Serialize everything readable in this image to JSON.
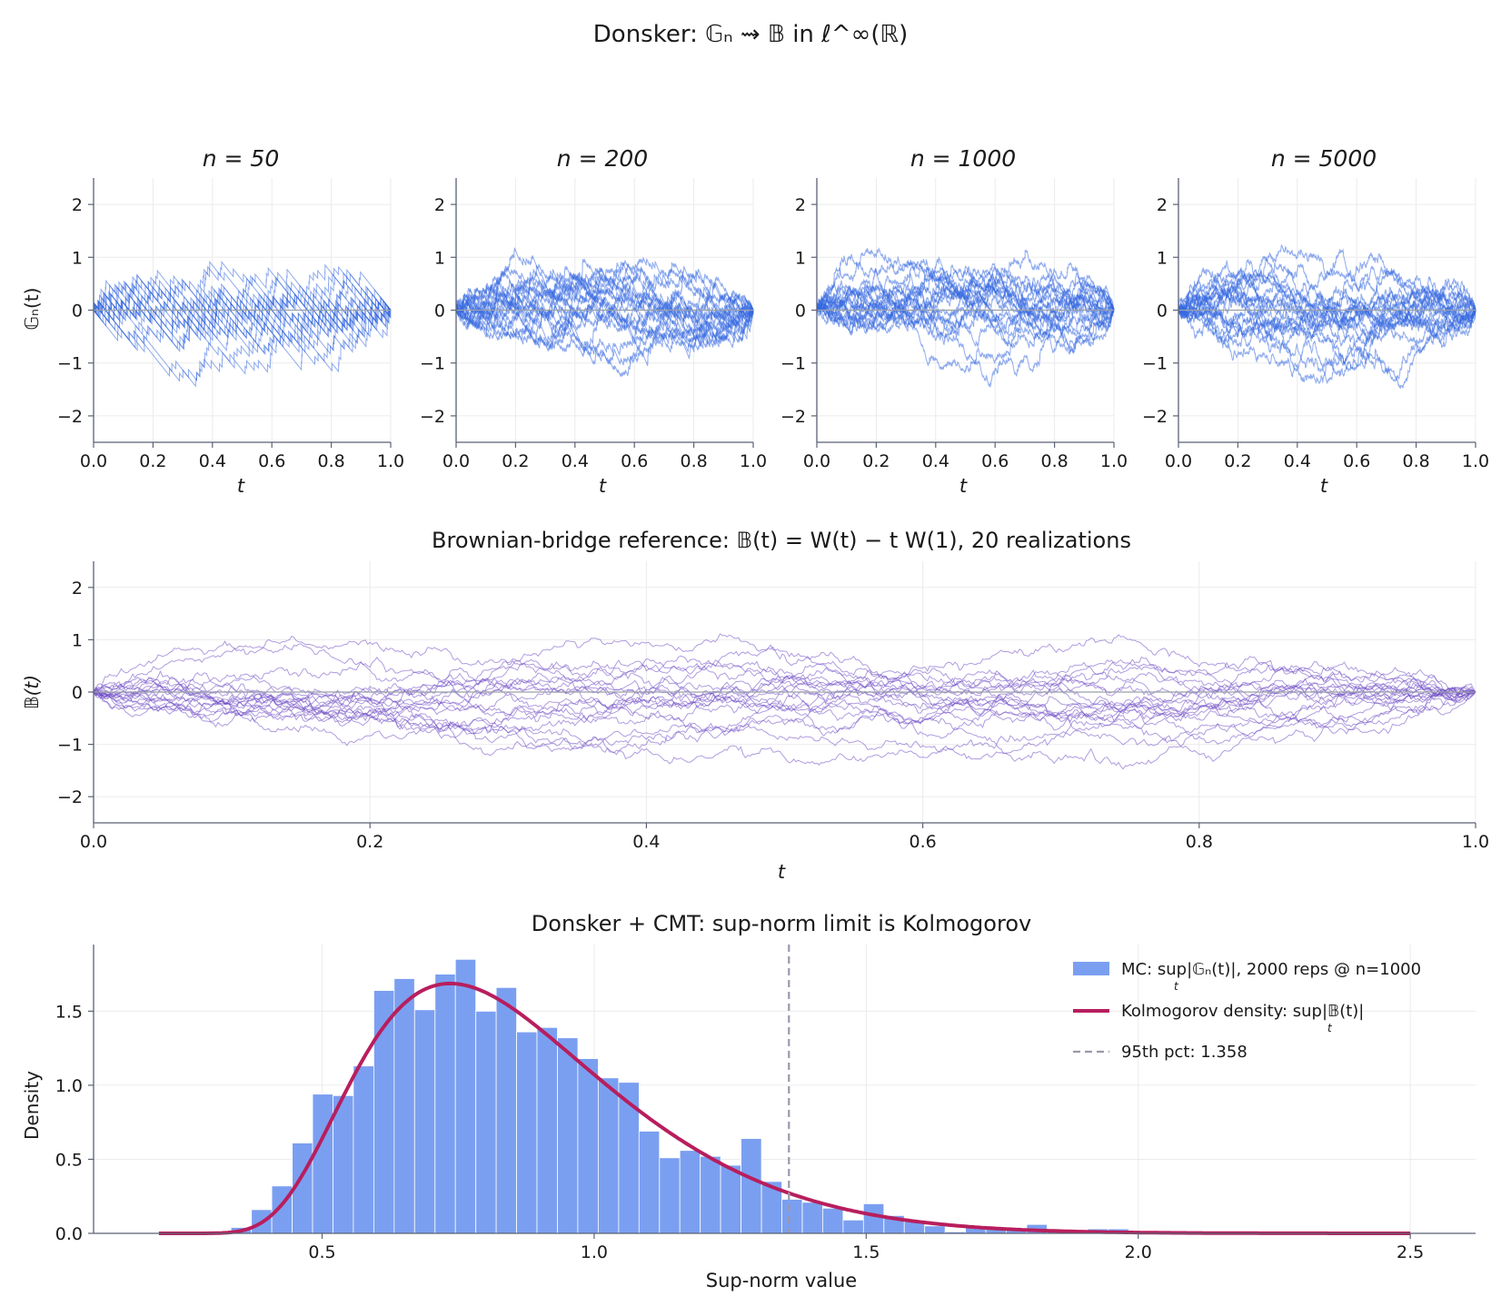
{
  "figure": {
    "suptitle": "Donsker: 𝔾ₙ ⇝ 𝔹 in ℓ^∞(ℝ)"
  },
  "colors": {
    "empirical_paths": "#3467e0",
    "bridge_paths": "#6f4cc4",
    "histogram": "#7b9ff0",
    "kolmogorov_curve": "#b81e5d",
    "percentile_line": "#9a99aa",
    "axis": "#5a6275",
    "grid": "#ebebeb"
  },
  "chart_data": [
    {
      "type": "line",
      "title": "n = 50",
      "n": 50,
      "xlabel": "t",
      "ylabel": "𝔾ₙ(t)",
      "xlim": [
        0,
        1
      ],
      "ylim": [
        -2.5,
        2.5
      ],
      "xticks": [
        "0.0",
        "0.2",
        "0.4",
        "0.6",
        "0.8",
        "1.0"
      ],
      "yticks": [
        "−2",
        "−1",
        "0",
        "1",
        "2"
      ],
      "realizations": 20,
      "grid": true
    },
    {
      "type": "line",
      "title": "n = 200",
      "n": 200,
      "xlabel": "t",
      "xlim": [
        0,
        1
      ],
      "ylim": [
        -2.5,
        2.5
      ],
      "xticks": [
        "0.0",
        "0.2",
        "0.4",
        "0.6",
        "0.8",
        "1.0"
      ],
      "yticks": [
        "−2",
        "−1",
        "0",
        "1",
        "2"
      ],
      "realizations": 20,
      "grid": true
    },
    {
      "type": "line",
      "title": "n = 1000",
      "n": 1000,
      "xlabel": "t",
      "xlim": [
        0,
        1
      ],
      "ylim": [
        -2.5,
        2.5
      ],
      "xticks": [
        "0.0",
        "0.2",
        "0.4",
        "0.6",
        "0.8",
        "1.0"
      ],
      "yticks": [
        "−2",
        "−1",
        "0",
        "1",
        "2"
      ],
      "realizations": 20,
      "grid": true
    },
    {
      "type": "line",
      "title": "n = 5000",
      "n": 5000,
      "xlabel": "t",
      "xlim": [
        0,
        1
      ],
      "ylim": [
        -2.5,
        2.5
      ],
      "xticks": [
        "0.0",
        "0.2",
        "0.4",
        "0.6",
        "0.8",
        "1.0"
      ],
      "yticks": [
        "−2",
        "−1",
        "0",
        "1",
        "2"
      ],
      "realizations": 20,
      "grid": true
    },
    {
      "type": "line",
      "title": "Brownian-bridge reference: 𝔹(t) = W(t) − t W(1), 20 realizations",
      "xlabel": "t",
      "ylabel": "𝔹(t)",
      "xlim": [
        0,
        1
      ],
      "ylim": [
        -2.5,
        2.5
      ],
      "xticks": [
        "0.0",
        "0.2",
        "0.4",
        "0.6",
        "0.8",
        "1.0"
      ],
      "yticks": [
        "−2",
        "−1",
        "0",
        "1",
        "2"
      ],
      "realizations": 20,
      "grid": true
    },
    {
      "type": "bar",
      "title": "Donsker + CMT: sup-norm limit is Kolmogorov",
      "xlabel": "Sup-norm value",
      "ylabel": "Density",
      "xlim": [
        0.08,
        2.62
      ],
      "ylim": [
        0,
        1.95
      ],
      "xticks": [
        "0.5",
        "1.0",
        "1.5",
        "2.0",
        "2.5"
      ],
      "yticks": [
        "0.0",
        "0.5",
        "1.0",
        "1.5"
      ],
      "grid": true,
      "legend_position": "top-right",
      "histogram": {
        "label_main": "MC: sup|𝔾ₙ(t)|, 2000 reps @ n=1000",
        "label_sub": "t",
        "bin_start": 0.2575,
        "bin_width": 0.0375,
        "densities": [
          0,
          0,
          0.04,
          0.16,
          0.32,
          0.61,
          0.94,
          0.93,
          1.13,
          1.64,
          1.72,
          1.51,
          1.75,
          1.85,
          1.5,
          1.66,
          1.36,
          1.39,
          1.32,
          1.18,
          1.05,
          1.02,
          0.69,
          0.51,
          0.56,
          0.52,
          0.46,
          0.64,
          0.35,
          0.23,
          0.21,
          0.17,
          0.09,
          0.2,
          0.12,
          0.08,
          0.05,
          0.01,
          0.04,
          0.03,
          0.02,
          0.06,
          0.02,
          0.01,
          0.03,
          0.03
        ]
      },
      "kolmogorov": {
        "label_main": "Kolmogorov density: sup|𝔹(t)|",
        "label_sub": "t",
        "x_range": [
          0.2,
          2.5
        ]
      },
      "percentile": {
        "label": "95th pct: 1.358",
        "value": 1.358
      }
    }
  ]
}
